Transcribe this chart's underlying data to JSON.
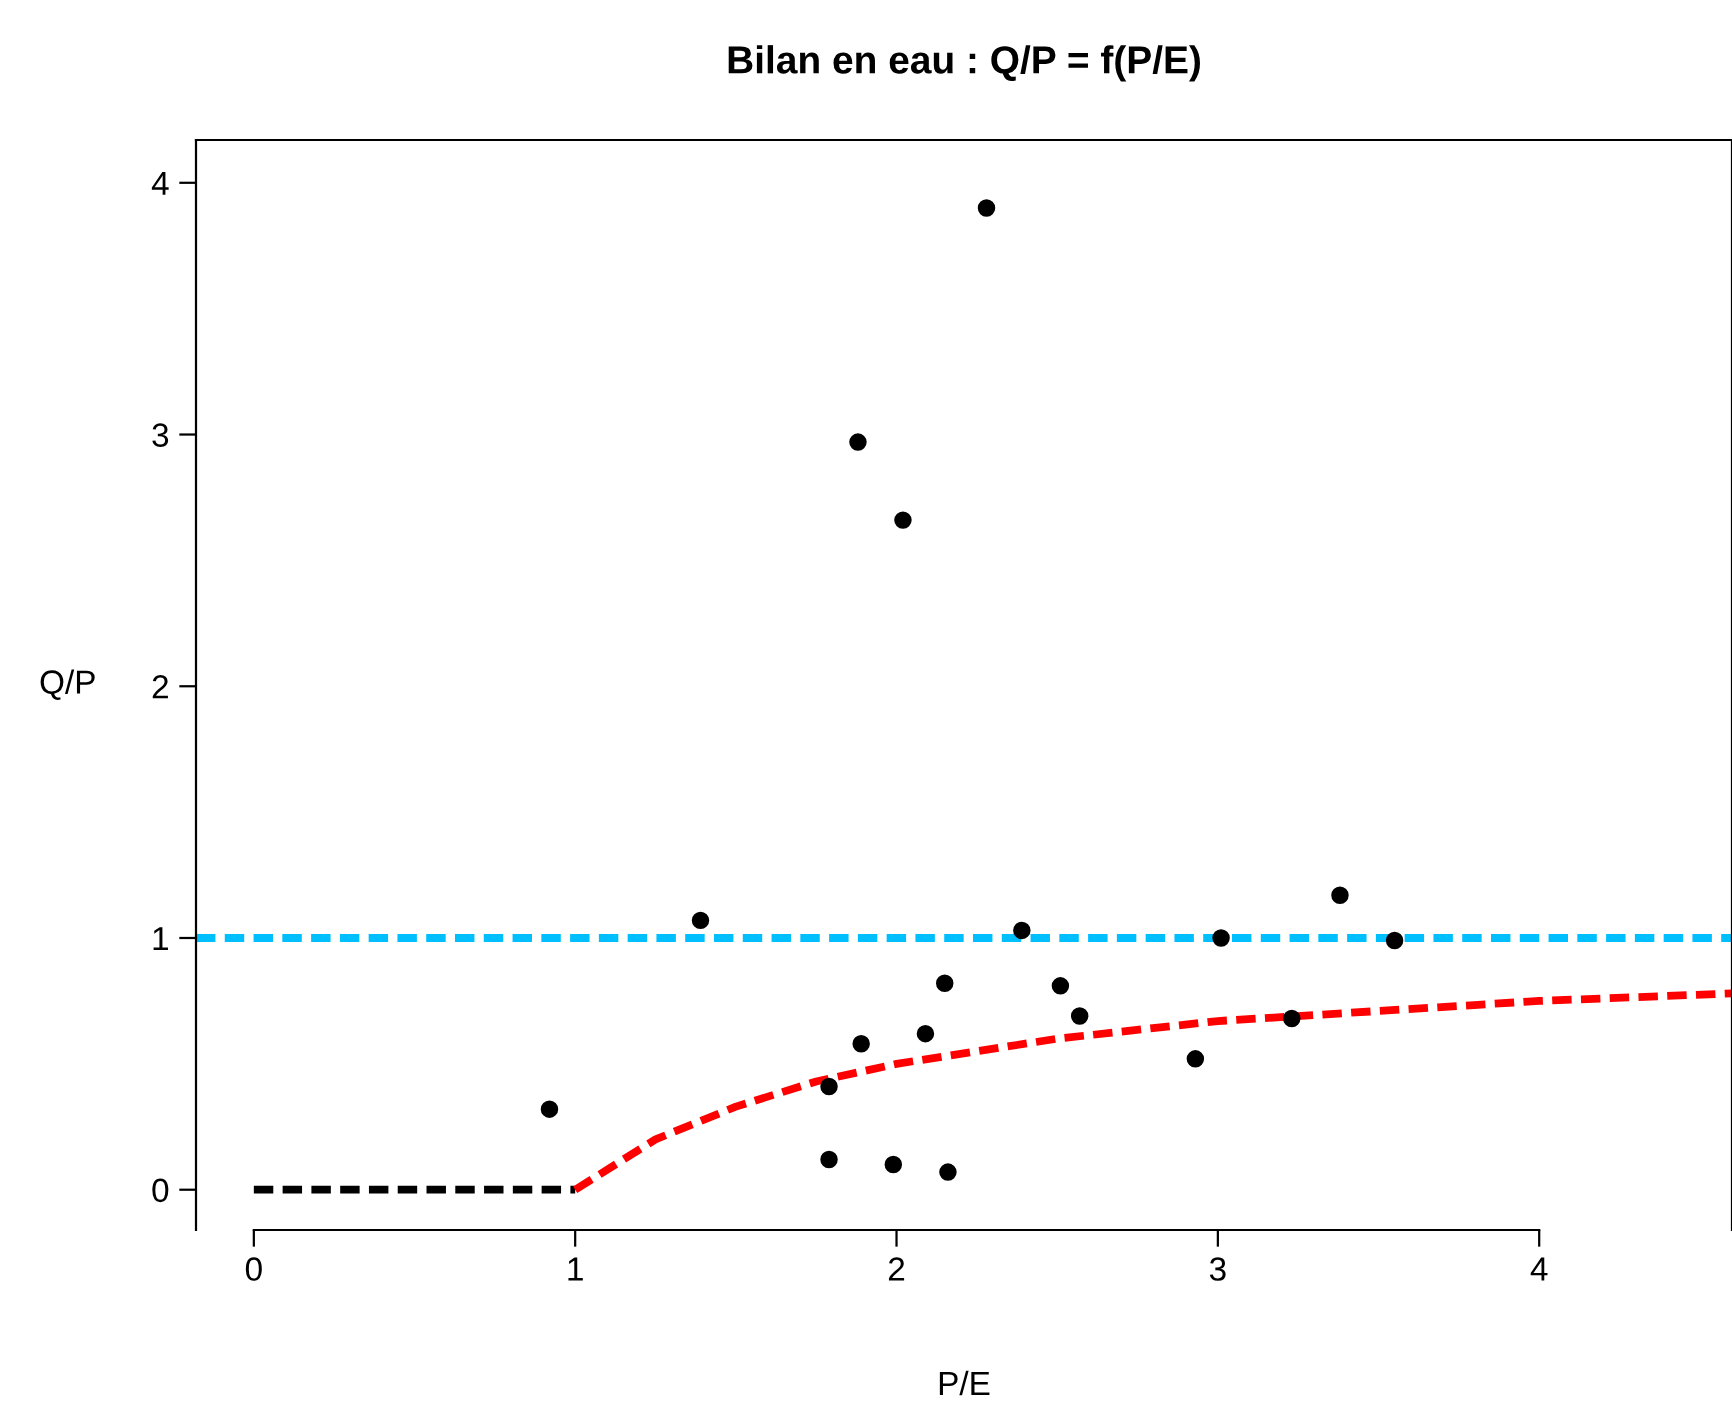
{
  "chart_data": {
    "type": "scatter",
    "title": "Bilan en eau : Q/P = f(P/E)",
    "xlabel": "P/E",
    "ylabel": "Q/P",
    "xlim": [
      -0.18,
      4.6
    ],
    "ylim": [
      -0.16,
      4.17
    ],
    "xticks": [
      0,
      1,
      2,
      3,
      4
    ],
    "yticks": [
      0,
      1,
      2,
      3,
      4
    ],
    "grid": false,
    "legend": false,
    "series": [
      {
        "color": "#000000",
        "marker": "circle",
        "x": [
          0.92,
          1.39,
          1.79,
          1.79,
          1.88,
          1.89,
          1.99,
          2.02,
          2.09,
          2.15,
          2.16,
          2.28,
          2.39,
          2.51,
          2.57,
          2.93,
          3.01,
          3.23,
          3.38,
          3.55
        ],
        "values": [
          0.32,
          1.07,
          0.12,
          0.41,
          2.97,
          0.58,
          0.1,
          2.66,
          0.62,
          0.82,
          0.07,
          3.9,
          1.03,
          0.81,
          0.69,
          0.52,
          1.0,
          0.68,
          1.17,
          0.99
        ]
      },
      {
        "type": "line",
        "color": "#000000",
        "line_style": "dashed",
        "marker": "none",
        "x": [
          0,
          1
        ],
        "values": [
          0,
          0
        ]
      },
      {
        "type": "line",
        "color": "#ff0000",
        "line_style": "dashed",
        "marker": "none",
        "x": [
          1,
          1.25,
          1.5,
          1.75,
          2,
          2.5,
          3,
          3.5,
          4,
          4.6
        ],
        "values": [
          0,
          0.2,
          0.33,
          0.43,
          0.5,
          0.6,
          0.67,
          0.71,
          0.75,
          0.78
        ]
      }
    ],
    "ref_lines": [
      {
        "axis": "y",
        "value": 1,
        "color": "#00bfff",
        "line_style": "dashed"
      }
    ]
  }
}
